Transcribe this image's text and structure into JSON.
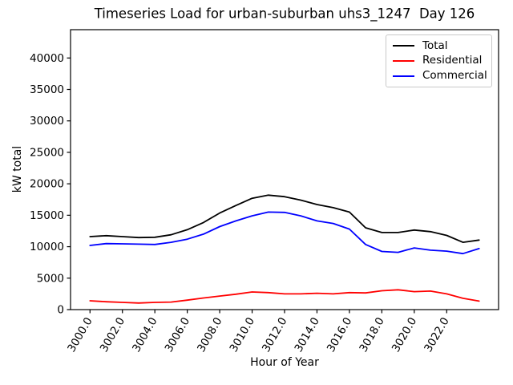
{
  "chart_data": {
    "type": "line",
    "title": "Timeseries Load for urban-suburban uhs3_1247  Day 126",
    "xlabel": "Hour of Year",
    "ylabel": "kW total",
    "grid": false,
    "legend_position": "upper right",
    "xlim": [
      2998.8,
      3025.2
    ],
    "ylim": [
      0,
      44500
    ],
    "xticks": [
      3000,
      3002,
      3004,
      3006,
      3008,
      3010,
      3012,
      3014,
      3016,
      3018,
      3020,
      3022
    ],
    "xtick_labels": [
      "3000.0",
      "3002.0",
      "3004.0",
      "3006.0",
      "3008.0",
      "3010.0",
      "3012.0",
      "3014.0",
      "3016.0",
      "3018.0",
      "3020.0",
      "3022.0"
    ],
    "yticks": [
      0,
      5000,
      10000,
      15000,
      20000,
      25000,
      30000,
      35000,
      40000
    ],
    "x": [
      3000,
      3001,
      3002,
      3003,
      3004,
      3005,
      3006,
      3007,
      3008,
      3009,
      3010,
      3011,
      3012,
      3013,
      3014,
      3015,
      3016,
      3017,
      3018,
      3019,
      3020,
      3021,
      3022,
      3023,
      3024
    ],
    "series": [
      {
        "name": "Total",
        "color": "#000000",
        "values": [
          11600,
          11750,
          11600,
          11450,
          11500,
          11900,
          12700,
          13850,
          15350,
          16550,
          17700,
          18200,
          17950,
          17400,
          16700,
          16200,
          15500,
          13000,
          12250,
          12250,
          12650,
          12400,
          11800,
          10700,
          11050
        ]
      },
      {
        "name": "Residential",
        "color": "#ff0000",
        "values": [
          1400,
          1250,
          1150,
          1050,
          1150,
          1200,
          1500,
          1850,
          2150,
          2450,
          2800,
          2700,
          2500,
          2500,
          2600,
          2500,
          2700,
          2650,
          3000,
          3150,
          2850,
          2950,
          2500,
          1800,
          1350
        ]
      },
      {
        "name": "Commercial",
        "color": "#0000ff",
        "values": [
          10200,
          10500,
          10450,
          10400,
          10350,
          10700,
          11200,
          12000,
          13200,
          14100,
          14900,
          15500,
          15450,
          14900,
          14100,
          13700,
          12800,
          10350,
          9250,
          9100,
          9800,
          9450,
          9300,
          8900,
          9700
        ]
      }
    ]
  }
}
